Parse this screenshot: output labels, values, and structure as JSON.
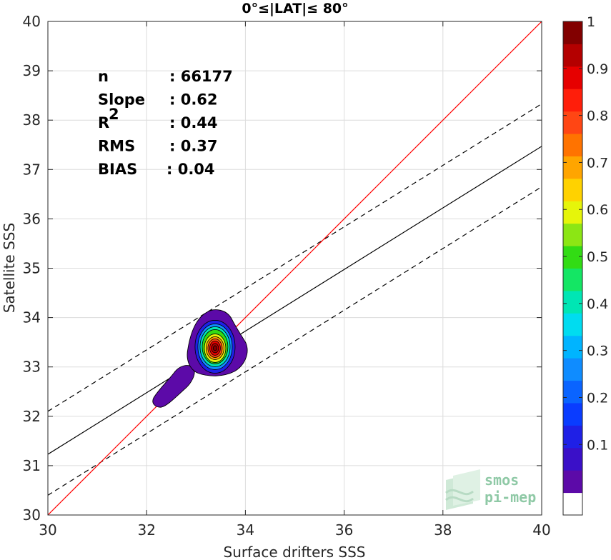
{
  "chart_data": {
    "type": "scatter",
    "title": "0°≤|LAT|≤ 80°",
    "xlabel": "Surface drifters SSS",
    "ylabel": "Satellite SSS",
    "xlim": [
      30,
      40
    ],
    "ylim": [
      30,
      40
    ],
    "xticks": [
      "30",
      "32",
      "34",
      "36",
      "38",
      "40"
    ],
    "yticks": [
      "30",
      "31",
      "32",
      "33",
      "34",
      "35",
      "36",
      "37",
      "38",
      "39",
      "40"
    ],
    "grid": true,
    "stats": [
      {
        "label": "n",
        "value": ": 66177"
      },
      {
        "label": "Slope",
        "value": ": 0.62"
      },
      {
        "label": "R",
        "sup": "2",
        "value": ": 0.44"
      },
      {
        "label": "RMS",
        "value": ": 0.37"
      },
      {
        "label": "BIAS",
        "value": ": 0.04"
      }
    ],
    "lines": {
      "identity": {
        "x": [
          30,
          40
        ],
        "y": [
          30,
          40
        ],
        "color": "#ff0000"
      },
      "regression": {
        "x": [
          30,
          40
        ],
        "y": [
          31.23,
          37.47
        ],
        "color": "#000000"
      },
      "upper_bound": {
        "x": [
          30,
          40
        ],
        "y": [
          32.1,
          38.33
        ],
        "style": "dashed"
      },
      "lower_bound": {
        "x": [
          30,
          40
        ],
        "y": [
          30.4,
          36.65
        ],
        "style": "dashed"
      }
    },
    "density_peak": {
      "x": 33.4,
      "y": 33.38
    },
    "colorbar": {
      "ticks": [
        "0.1",
        "0.2",
        "0.3",
        "0.4",
        "0.5",
        "0.6",
        "0.7",
        "0.8",
        "0.9",
        "1"
      ],
      "levels": [
        "#ffffff",
        "#5c0aa8",
        "#3a10c8",
        "#1f20e6",
        "#0a3cff",
        "#0a64ff",
        "#0f8cff",
        "#00b4ff",
        "#00dcf0",
        "#00e6b4",
        "#14e664",
        "#32dc14",
        "#8ce614",
        "#e6f50a",
        "#ffd200",
        "#ffa500",
        "#ff7300",
        "#ff4614",
        "#ff1e0a",
        "#e60000",
        "#b40000",
        "#820000"
      ]
    },
    "logo": [
      "smos",
      "pi-mep"
    ]
  }
}
